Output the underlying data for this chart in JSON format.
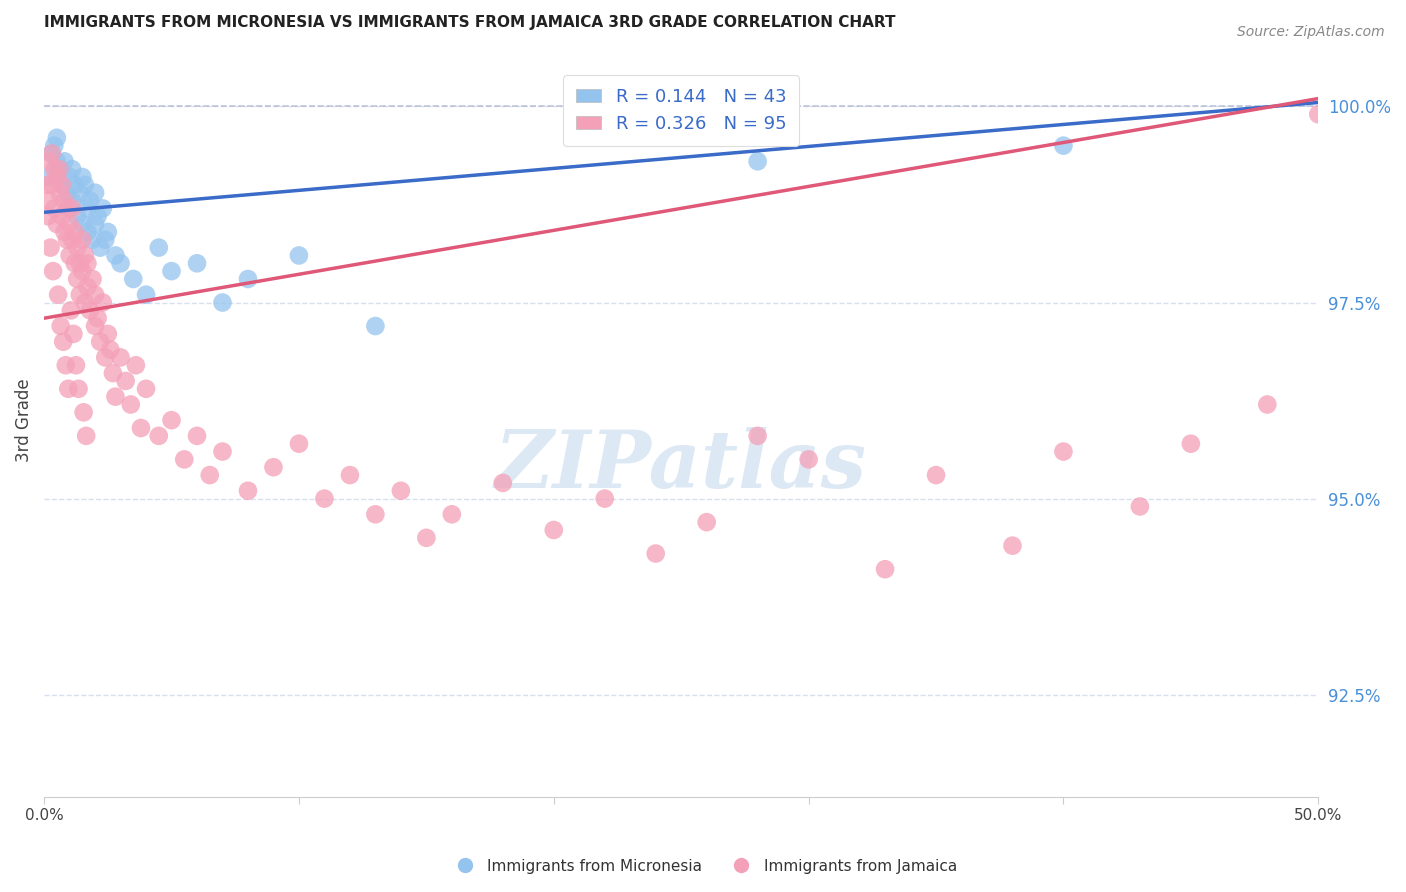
{
  "title": "IMMIGRANTS FROM MICRONESIA VS IMMIGRANTS FROM JAMAICA 3RD GRADE CORRELATION CHART",
  "source": "Source: ZipAtlas.com",
  "ylabel": "3rd Grade",
  "ylabel_values": [
    92.5,
    95.0,
    97.5,
    100.0
  ],
  "xmin": 0.0,
  "xmax": 50.0,
  "ymin": 91.2,
  "ymax": 100.8,
  "legend_micronesia_R": "0.144",
  "legend_micronesia_N": "43",
  "legend_jamaica_R": "0.326",
  "legend_jamaica_N": "95",
  "blue_color": "#94C4EE",
  "pink_color": "#F4A0B8",
  "blue_line_color": "#3A6BC8",
  "pink_line_color": "#E05878",
  "legend_text_color": "#3A6BC8",
  "right_label_color": "#4A90D9",
  "title_color": "#222222",
  "source_color": "#888888",
  "watermark_color": "#DDE8F5",
  "micro_x": [
    0.2,
    0.3,
    0.4,
    0.5,
    0.5,
    0.6,
    0.7,
    0.8,
    0.9,
    1.0,
    1.0,
    1.1,
    1.1,
    1.2,
    1.3,
    1.4,
    1.5,
    1.5,
    1.6,
    1.7,
    1.7,
    1.8,
    1.9,
    2.0,
    2.0,
    2.1,
    2.2,
    2.3,
    2.4,
    2.5,
    2.8,
    3.0,
    3.5,
    4.0,
    4.5,
    5.0,
    6.0,
    7.0,
    8.0,
    10.0,
    13.0,
    28.0,
    40.0
  ],
  "micro_y": [
    99.1,
    99.4,
    99.5,
    99.6,
    99.3,
    99.2,
    99.0,
    99.3,
    98.9,
    99.1,
    98.7,
    99.2,
    98.8,
    99.0,
    98.6,
    98.9,
    99.1,
    98.5,
    99.0,
    98.7,
    98.4,
    98.8,
    98.3,
    98.9,
    98.5,
    98.6,
    98.2,
    98.7,
    98.3,
    98.4,
    98.1,
    98.0,
    97.8,
    97.6,
    98.2,
    97.9,
    98.0,
    97.5,
    97.8,
    98.1,
    97.2,
    99.3,
    99.5
  ],
  "jam_x": [
    0.1,
    0.2,
    0.2,
    0.3,
    0.3,
    0.4,
    0.4,
    0.5,
    0.5,
    0.6,
    0.6,
    0.7,
    0.7,
    0.8,
    0.8,
    0.9,
    0.9,
    1.0,
    1.0,
    1.1,
    1.1,
    1.2,
    1.2,
    1.3,
    1.3,
    1.4,
    1.4,
    1.5,
    1.5,
    1.6,
    1.6,
    1.7,
    1.7,
    1.8,
    1.9,
    2.0,
    2.0,
    2.1,
    2.2,
    2.3,
    2.4,
    2.5,
    2.6,
    2.7,
    2.8,
    3.0,
    3.2,
    3.4,
    3.6,
    3.8,
    4.0,
    4.5,
    5.0,
    5.5,
    6.0,
    6.5,
    7.0,
    8.0,
    9.0,
    10.0,
    11.0,
    12.0,
    13.0,
    14.0,
    15.0,
    16.0,
    18.0,
    20.0,
    22.0,
    24.0,
    26.0,
    28.0,
    30.0,
    33.0,
    35.0,
    38.0,
    40.0,
    43.0,
    45.0,
    48.0,
    50.0,
    0.15,
    0.25,
    0.35,
    0.55,
    0.65,
    0.75,
    0.85,
    0.95,
    1.05,
    1.15,
    1.25,
    1.35,
    1.55,
    1.65
  ],
  "jam_y": [
    99.0,
    99.3,
    98.8,
    99.4,
    99.0,
    99.2,
    98.7,
    99.1,
    98.5,
    98.9,
    99.2,
    98.6,
    99.0,
    98.4,
    98.8,
    98.3,
    98.7,
    98.5,
    98.1,
    98.7,
    98.3,
    98.0,
    98.4,
    97.8,
    98.2,
    97.6,
    98.0,
    97.9,
    98.3,
    97.5,
    98.1,
    97.7,
    98.0,
    97.4,
    97.8,
    97.2,
    97.6,
    97.3,
    97.0,
    97.5,
    96.8,
    97.1,
    96.9,
    96.6,
    96.3,
    96.8,
    96.5,
    96.2,
    96.7,
    95.9,
    96.4,
    95.8,
    96.0,
    95.5,
    95.8,
    95.3,
    95.6,
    95.1,
    95.4,
    95.7,
    95.0,
    95.3,
    94.8,
    95.1,
    94.5,
    94.8,
    95.2,
    94.6,
    95.0,
    94.3,
    94.7,
    95.8,
    95.5,
    94.1,
    95.3,
    94.4,
    95.6,
    94.9,
    95.7,
    96.2,
    99.9,
    98.6,
    98.2,
    97.9,
    97.6,
    97.2,
    97.0,
    96.7,
    96.4,
    97.4,
    97.1,
    96.7,
    96.4,
    96.1,
    95.8
  ]
}
